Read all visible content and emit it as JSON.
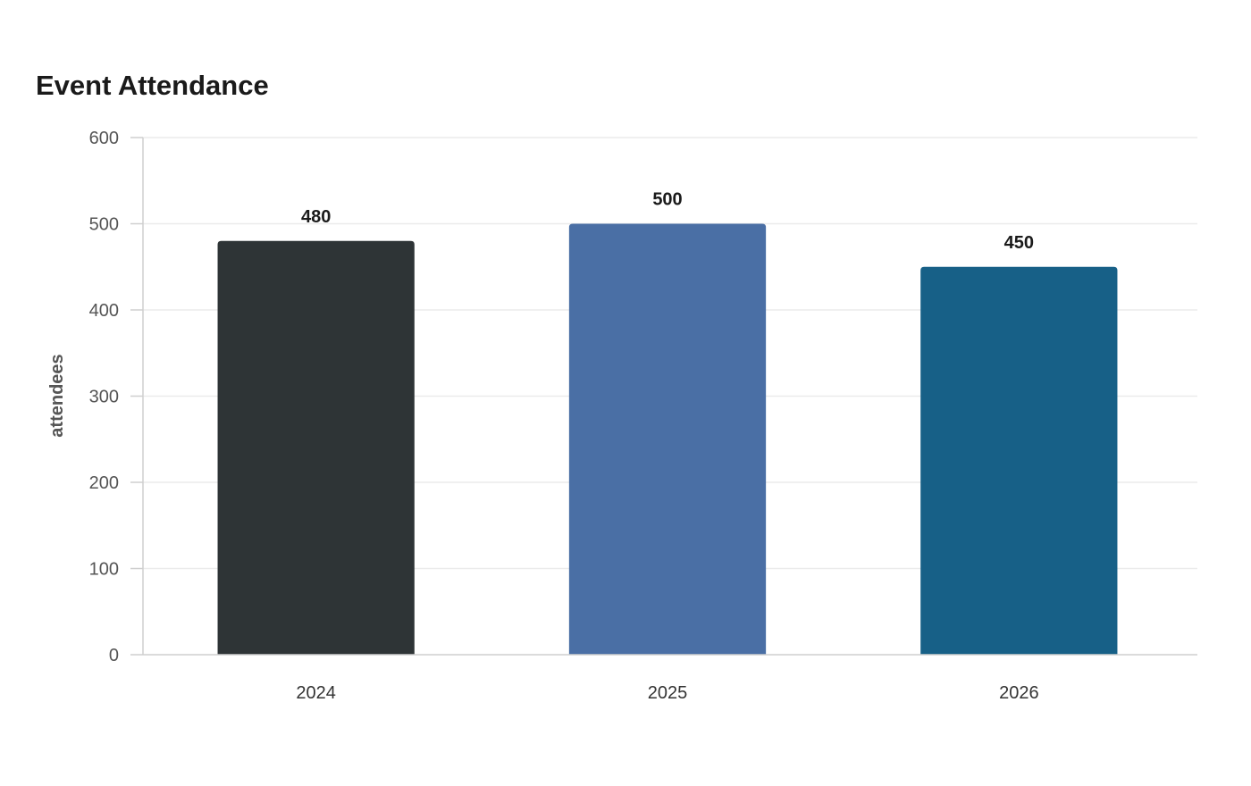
{
  "chart_data": {
    "type": "bar",
    "title": "Event Attendance",
    "xlabel": "",
    "ylabel": "attendees",
    "categories": [
      "2024",
      "2025",
      "2026"
    ],
    "values": [
      480,
      500,
      450
    ],
    "colors": [
      "#2e3436",
      "#4a6fa5",
      "#176087"
    ],
    "ylim": [
      0,
      600
    ],
    "yticks": [
      0,
      100,
      200,
      300,
      400,
      500,
      600
    ],
    "grid": true,
    "legend": "none",
    "data_labels": true
  }
}
